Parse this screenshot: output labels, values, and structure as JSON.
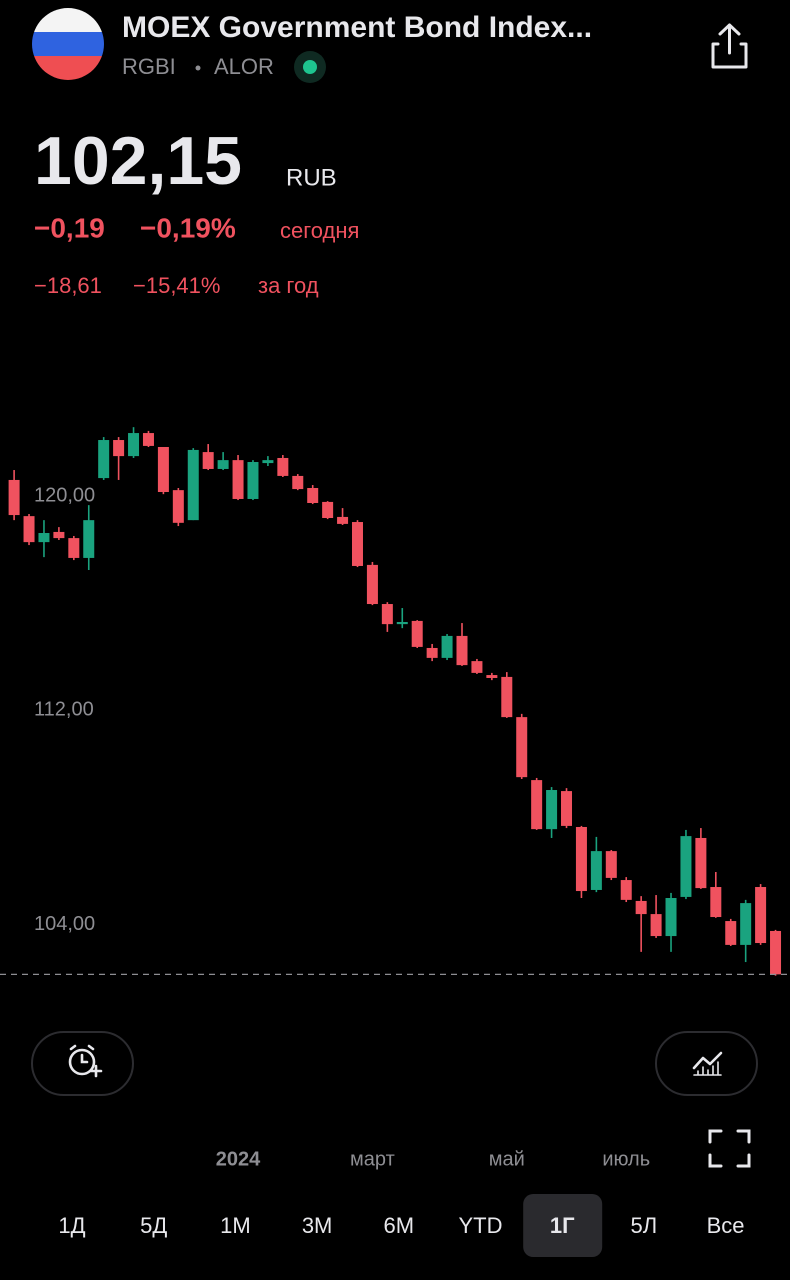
{
  "header": {
    "title": "MOEX Government Bond Index...",
    "ticker": "RGBI",
    "exchange": "ALOR"
  },
  "quote": {
    "price": "102,15",
    "currency": "RUB",
    "today_change": "−0,19",
    "today_change_pct": "−0,19%",
    "today_label": "сегодня",
    "year_change": "−18,61",
    "year_change_pct": "−15,41%",
    "year_label": "за год"
  },
  "chart_data": {
    "type": "candlestick",
    "categories": [
      null,
      null,
      null,
      null,
      null,
      null,
      null,
      null,
      null,
      null,
      null,
      null,
      null,
      null,
      null,
      "2024",
      null,
      null,
      null,
      null,
      null,
      null,
      null,
      null,
      "март",
      null,
      null,
      null,
      null,
      null,
      null,
      null,
      null,
      "май",
      null,
      null,
      null,
      null,
      null,
      null,
      null,
      "июль",
      null,
      null,
      null,
      null,
      null,
      null,
      null,
      null,
      null,
      null
    ],
    "open": [
      120.6,
      119.25,
      118.28,
      118.66,
      118.43,
      117.69,
      120.67,
      122.09,
      121.49,
      122.35,
      121.83,
      120.22,
      119.1,
      121.64,
      121.01,
      121.34,
      119.89,
      121.23,
      121.42,
      120.75,
      120.3,
      119.78,
      119.22,
      119.03,
      117.43,
      115.97,
      115.22,
      115.34,
      114.33,
      113.96,
      114.78,
      113.84,
      113.32,
      113.25,
      111.75,
      109.4,
      107.57,
      108.99,
      107.65,
      105.3,
      106.75,
      105.67,
      104.89,
      104.4,
      103.58,
      105.04,
      107.24,
      105.41,
      104.14,
      103.25,
      105.41,
      103.77
    ],
    "high": [
      120.97,
      119.33,
      119.1,
      118.84,
      118.51,
      119.66,
      122.2,
      122.2,
      122.57,
      122.43,
      121.83,
      120.3,
      121.79,
      121.94,
      121.64,
      121.53,
      121.34,
      121.49,
      121.53,
      120.82,
      120.41,
      119.81,
      119.55,
      119.1,
      117.54,
      116.04,
      115.82,
      115.37,
      114.48,
      114.85,
      115.26,
      113.92,
      113.4,
      113.43,
      111.87,
      109.48,
      109.14,
      109.1,
      107.69,
      107.28,
      106.79,
      105.78,
      105.07,
      105.11,
      105.19,
      107.54,
      107.61,
      105.97,
      104.22,
      104.93,
      105.52,
      103.81
    ],
    "low": [
      119.1,
      118.17,
      117.72,
      118.36,
      117.61,
      117.24,
      120.6,
      120.6,
      121.42,
      121.83,
      120.07,
      118.88,
      119.1,
      120.97,
      120.97,
      119.85,
      119.85,
      121.12,
      120.71,
      120.22,
      119.7,
      119.14,
      118.92,
      117.35,
      115.93,
      114.93,
      115.07,
      114.33,
      113.84,
      113.88,
      113.66,
      113.36,
      113.13,
      111.72,
      109.44,
      107.54,
      107.24,
      107.61,
      105.0,
      105.22,
      105.67,
      104.85,
      102.99,
      103.51,
      102.99,
      104.96,
      105.34,
      104.26,
      103.21,
      102.61,
      103.25,
      102.1
    ],
    "close": [
      119.29,
      118.28,
      118.62,
      118.43,
      117.69,
      119.1,
      122.09,
      121.49,
      122.35,
      121.87,
      120.15,
      119.0,
      121.72,
      121.01,
      121.34,
      119.89,
      121.27,
      121.34,
      120.75,
      120.26,
      119.74,
      119.18,
      118.96,
      117.39,
      115.97,
      115.22,
      115.3,
      114.37,
      113.96,
      114.78,
      113.69,
      113.4,
      113.21,
      111.75,
      109.51,
      107.57,
      109.03,
      107.69,
      105.26,
      106.75,
      105.75,
      104.93,
      104.4,
      103.58,
      105.0,
      107.31,
      105.37,
      104.29,
      103.25,
      104.81,
      103.32,
      102.15
    ],
    "up_color": "#1aa37f",
    "down_color": "#f0525f",
    "ylim": [
      102,
      124.3
    ],
    "yticks": [
      {
        "value": 104,
        "label": "104,00"
      },
      {
        "value": 112,
        "label": "112,00"
      },
      {
        "value": 120,
        "label": "120,00"
      }
    ]
  },
  "controls": {
    "ranges": [
      "1Д",
      "5Д",
      "1М",
      "3М",
      "6М",
      "YTD",
      "1Г",
      "5Л",
      "Все"
    ],
    "selected_range": "1Г"
  }
}
